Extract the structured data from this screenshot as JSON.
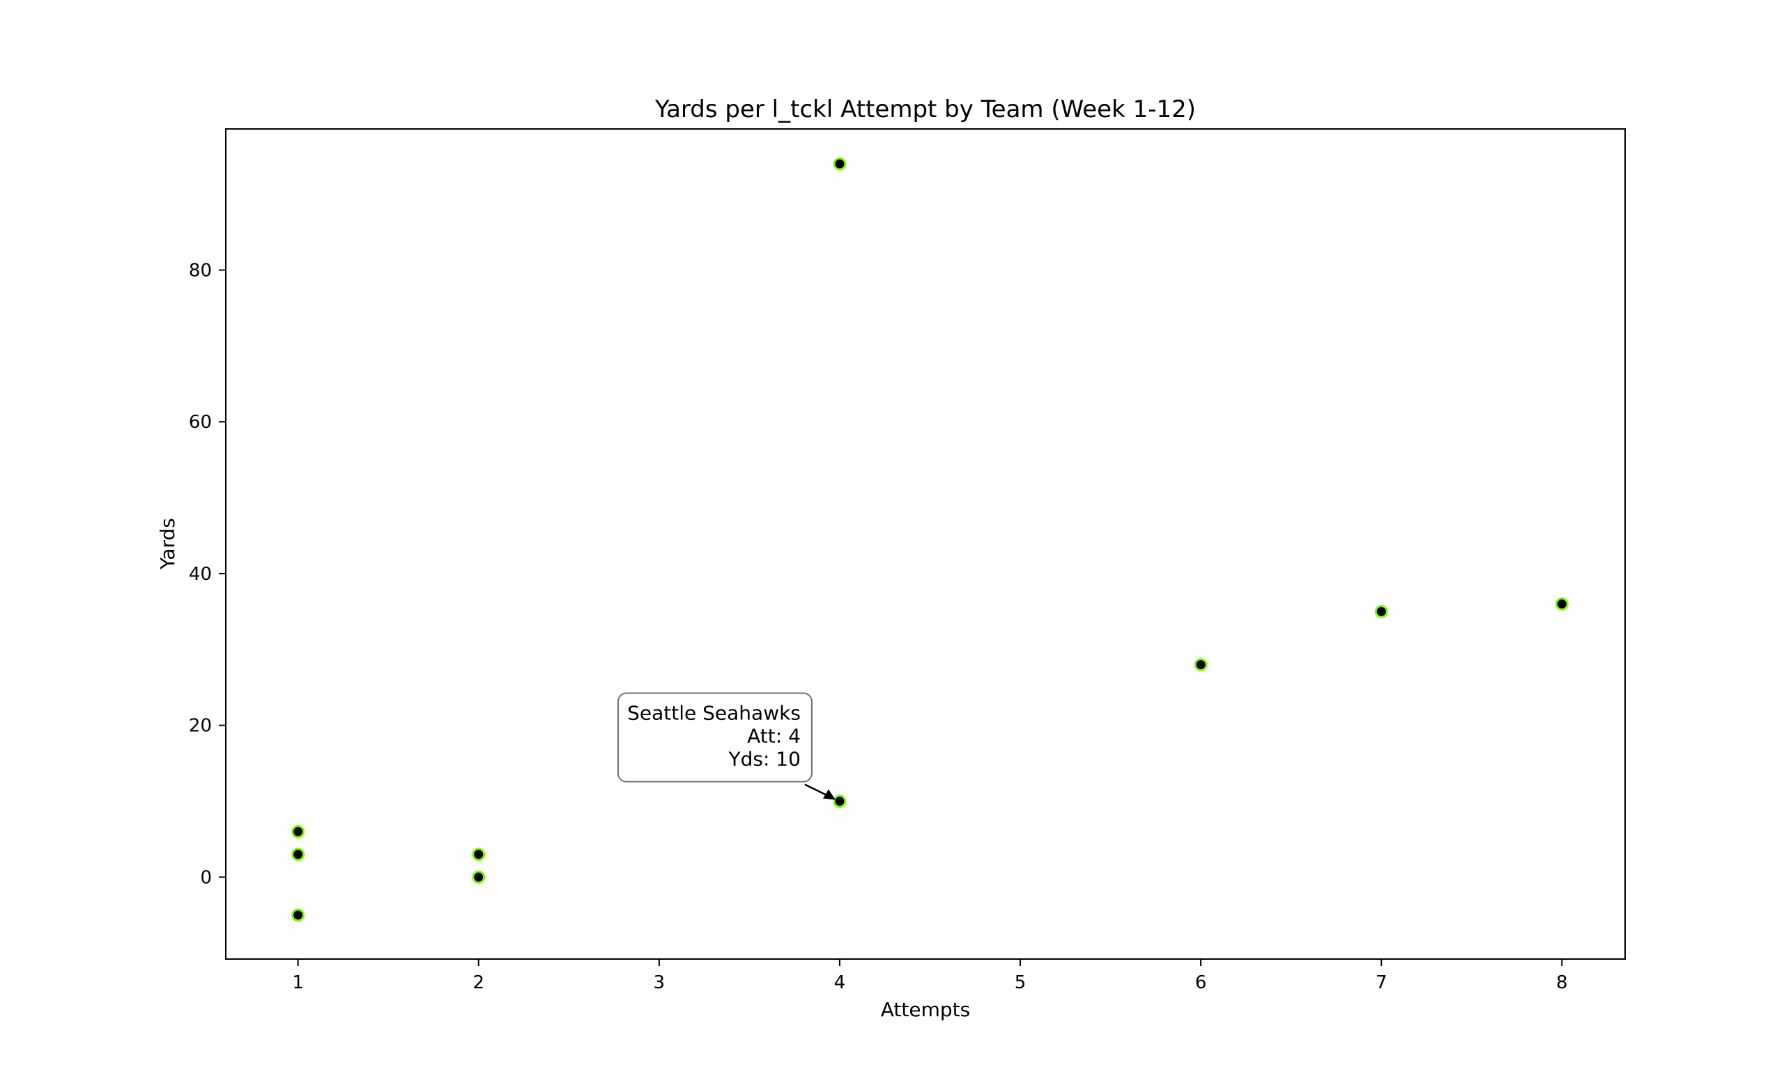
{
  "chart_data": {
    "type": "scatter",
    "title": "Yards per l_tckl Attempt by Team (Week 1-12)",
    "xlabel": "Attempts",
    "ylabel": "Yards",
    "xlim": [
      0.6,
      8.35
    ],
    "ylim": [
      -10.8,
      98.6
    ],
    "xticks": [
      1,
      2,
      3,
      4,
      5,
      6,
      7,
      8
    ],
    "yticks": [
      0,
      20,
      40,
      60,
      80
    ],
    "grid": false,
    "marker_face_color": "#000000",
    "marker_edge_color": "#7CFC00",
    "points": [
      {
        "x": 1,
        "y": 6
      },
      {
        "x": 1,
        "y": 3
      },
      {
        "x": 1,
        "y": -5
      },
      {
        "x": 2,
        "y": 3
      },
      {
        "x": 2,
        "y": 0
      },
      {
        "x": 4,
        "y": 94
      },
      {
        "x": 4,
        "y": 10
      },
      {
        "x": 6,
        "y": 28
      },
      {
        "x": 7,
        "y": 35
      },
      {
        "x": 8,
        "y": 36
      }
    ],
    "annotation": {
      "x": 4,
      "y": 10,
      "lines": [
        "Seattle Seahawks",
        "Att: 4",
        "Yds: 10"
      ]
    }
  }
}
